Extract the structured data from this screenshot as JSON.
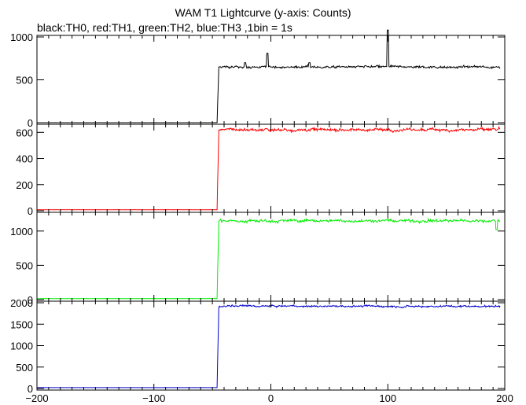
{
  "chart_data": {
    "type": "line",
    "title": "WAM T1 Lightcurve (y-axis: Counts)",
    "subtitle": "black:TH0, red:TH1, green:TH2, blue:TH3 ,1bin = 1s",
    "xlim": [
      -200,
      200
    ],
    "x_ticks": [
      -200,
      -100,
      0,
      100,
      200
    ],
    "grid": false,
    "panels": [
      {
        "name": "TH0",
        "color": "#000000",
        "ylim": [
          0,
          1000
        ],
        "y_ticks": [
          0,
          500,
          1000
        ],
        "pre_level": 0,
        "step_x": -46,
        "post_level": 650,
        "noise": 18,
        "spikes": [
          {
            "x": -3,
            "y": 810
          },
          {
            "x": 100,
            "y": 1080
          },
          {
            "x": 33,
            "y": 700
          },
          {
            "x": -22,
            "y": 700
          }
        ]
      },
      {
        "name": "TH1",
        "color": "#ff0000",
        "ylim": [
          0,
          650
        ],
        "y_ticks": [
          0,
          200,
          400,
          600
        ],
        "pre_level": 8,
        "step_x": -46,
        "post_level": 620,
        "noise": 15,
        "spikes": []
      },
      {
        "name": "TH2",
        "color": "#00ee00",
        "ylim": [
          0,
          1250
        ],
        "y_ticks": [
          0,
          500,
          1000
        ],
        "pre_level": 15,
        "step_x": -46,
        "post_level": 1150,
        "noise": 28,
        "spikes": [
          {
            "x": 193,
            "y": 1020
          }
        ]
      },
      {
        "name": "TH3",
        "color": "#0000cc",
        "ylim": [
          0,
          2000
        ],
        "y_ticks": [
          0,
          500,
          1000,
          1500,
          2000
        ],
        "pre_level": 20,
        "step_x": -46,
        "post_level": 1920,
        "noise": 28,
        "spikes": []
      }
    ]
  }
}
